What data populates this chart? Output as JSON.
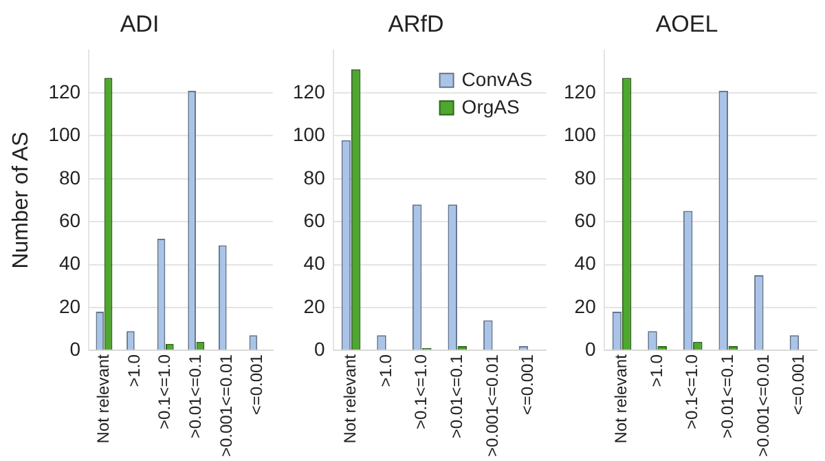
{
  "chart_data": [
    {
      "type": "bar",
      "title": "ADI",
      "ylabel": "Number of AS",
      "categories": [
        "Not relevant",
        ">1.0",
        ">0.1<=1.0",
        ">0.01<=0.1",
        ">0.001<=0.01",
        "<=0.001"
      ],
      "series": [
        {
          "color": "#a9c4e8",
          "values": [
            18,
            9,
            52,
            121,
            49,
            7
          ]
        },
        {
          "color": "#4ea72e",
          "values": [
            127,
            0,
            3,
            4,
            0,
            0
          ]
        }
      ],
      "ylim": [
        0,
        140
      ],
      "yticks": [
        0,
        20,
        40,
        60,
        80,
        100,
        120
      ],
      "grid": "y",
      "legend": false
    },
    {
      "type": "bar",
      "title": "ARfD",
      "categories": [
        "Not relevant",
        ">1.0",
        ">0.1<=1.0",
        ">0.01<=0.1",
        ">0.001<=0.01",
        "<=0.001"
      ],
      "series": [
        {
          "name": "ConvAS",
          "color": "#a9c4e8",
          "values": [
            98,
            7,
            68,
            68,
            14,
            2
          ]
        },
        {
          "name": "OrgAS",
          "color": "#4ea72e",
          "values": [
            131,
            0,
            1,
            2,
            0,
            0
          ]
        }
      ],
      "ylim": [
        0,
        140
      ],
      "yticks": [
        0,
        20,
        40,
        60,
        80,
        100,
        120
      ],
      "grid": "y",
      "legend": "top right"
    },
    {
      "type": "bar",
      "title": "AOEL",
      "categories": [
        "Not relevant",
        ">1.0",
        ">0.1<=1.0",
        ">0.01<=0.1",
        ">0.001<=0.01",
        "<=0.001"
      ],
      "series": [
        {
          "color": "#a9c4e8",
          "values": [
            18,
            9,
            65,
            121,
            35,
            7
          ]
        },
        {
          "color": "#4ea72e",
          "values": [
            127,
            2,
            4,
            2,
            0,
            0
          ]
        }
      ],
      "ylim": [
        0,
        140
      ],
      "yticks": [
        0,
        20,
        40,
        60,
        80,
        100,
        120
      ],
      "grid": "y",
      "legend": false
    }
  ]
}
